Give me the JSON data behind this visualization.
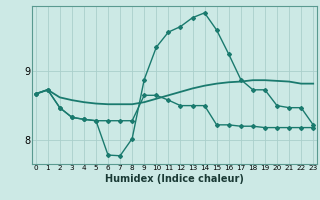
{
  "xlabel": "Humidex (Indice chaleur)",
  "background_color": "#cce9e5",
  "grid_color": "#aacfcb",
  "line_color": "#1a7a6e",
  "x_ticks": [
    0,
    1,
    2,
    3,
    4,
    5,
    6,
    7,
    8,
    9,
    10,
    11,
    12,
    13,
    14,
    15,
    16,
    17,
    18,
    19,
    20,
    21,
    22,
    23
  ],
  "y_ticks": [
    8,
    9
  ],
  "ylim": [
    7.65,
    9.95
  ],
  "xlim": [
    -0.3,
    23.3
  ],
  "series1_x": [
    0,
    1,
    2,
    3,
    4,
    5,
    6,
    7,
    8,
    9,
    10,
    11,
    12,
    13,
    14,
    15,
    16,
    17,
    18,
    19,
    20,
    21,
    22,
    23
  ],
  "series1_y": [
    8.67,
    8.73,
    8.62,
    8.58,
    8.55,
    8.53,
    8.52,
    8.52,
    8.52,
    8.55,
    8.6,
    8.65,
    8.7,
    8.75,
    8.79,
    8.82,
    8.84,
    8.85,
    8.87,
    8.87,
    8.86,
    8.85,
    8.82,
    8.82
  ],
  "series2_x": [
    0,
    1,
    2,
    3,
    4,
    5,
    6,
    7,
    8,
    9,
    10,
    11,
    12,
    13,
    14,
    15,
    16,
    17,
    18,
    19,
    20,
    21,
    22,
    23
  ],
  "series2_y": [
    8.67,
    8.73,
    8.47,
    8.33,
    8.3,
    8.28,
    8.28,
    8.28,
    8.28,
    8.65,
    8.65,
    8.58,
    8.5,
    8.5,
    8.5,
    8.22,
    8.22,
    8.2,
    8.2,
    8.18,
    8.18,
    8.18,
    8.18,
    8.18
  ],
  "series3_x": [
    0,
    1,
    2,
    3,
    4,
    5,
    6,
    7,
    8,
    9,
    10,
    11,
    12,
    13,
    14,
    15,
    16,
    17,
    18,
    19,
    20,
    21,
    22,
    23
  ],
  "series3_y": [
    8.67,
    8.73,
    8.47,
    8.33,
    8.3,
    8.28,
    7.78,
    7.77,
    8.02,
    8.88,
    9.35,
    9.57,
    9.65,
    9.78,
    9.85,
    9.6,
    9.25,
    8.88,
    8.73,
    8.73,
    8.5,
    8.47,
    8.47,
    8.22
  ]
}
